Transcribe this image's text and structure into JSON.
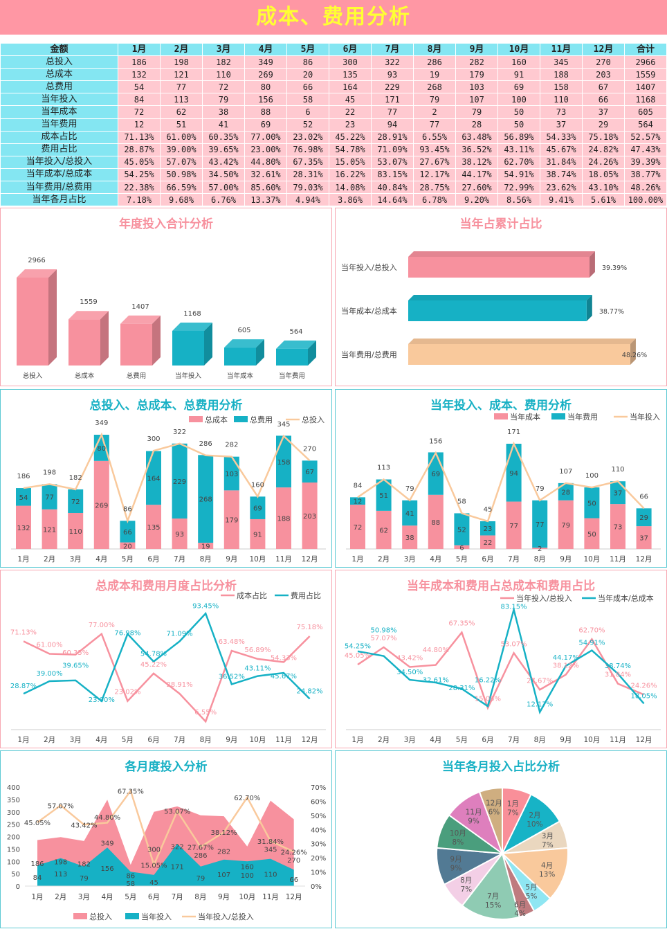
{
  "title": "成本、费用分析",
  "colors": {
    "pink": "#f7919e",
    "teal": "#16b1c5",
    "peach": "#f9c99c",
    "banner": "#ff97a4",
    "title_text": "#ffff33"
  },
  "table": {
    "headers": [
      "金额",
      "1月",
      "2月",
      "3月",
      "4月",
      "5月",
      "6月",
      "7月",
      "8月",
      "9月",
      "10月",
      "11月",
      "12月",
      "合计"
    ],
    "rows": [
      [
        "总投入",
        "186",
        "198",
        "182",
        "349",
        "86",
        "300",
        "322",
        "286",
        "282",
        "160",
        "345",
        "270",
        "2966"
      ],
      [
        "总成本",
        "132",
        "121",
        "110",
        "269",
        "20",
        "135",
        "93",
        "19",
        "179",
        "91",
        "188",
        "203",
        "1559"
      ],
      [
        "总费用",
        "54",
        "77",
        "72",
        "80",
        "66",
        "164",
        "229",
        "268",
        "103",
        "69",
        "158",
        "67",
        "1407"
      ],
      [
        "当年投入",
        "84",
        "113",
        "79",
        "156",
        "58",
        "45",
        "171",
        "79",
        "107",
        "100",
        "110",
        "66",
        "1168"
      ],
      [
        "当年成本",
        "72",
        "62",
        "38",
        "88",
        "6",
        "22",
        "77",
        "2",
        "79",
        "50",
        "73",
        "37",
        "605"
      ],
      [
        "当年费用",
        "12",
        "51",
        "41",
        "69",
        "52",
        "23",
        "94",
        "77",
        "28",
        "50",
        "37",
        "29",
        "564"
      ],
      [
        "成本占比",
        "71.13%",
        "61.00%",
        "60.35%",
        "77.00%",
        "23.02%",
        "45.22%",
        "28.91%",
        "6.55%",
        "63.48%",
        "56.89%",
        "54.33%",
        "75.18%",
        "52.57%"
      ],
      [
        "费用占比",
        "28.87%",
        "39.00%",
        "39.65%",
        "23.00%",
        "76.98%",
        "54.78%",
        "71.09%",
        "93.45%",
        "36.52%",
        "43.11%",
        "45.67%",
        "24.82%",
        "47.43%"
      ],
      [
        "当年投入/总投入",
        "45.05%",
        "57.07%",
        "43.42%",
        "44.80%",
        "67.35%",
        "15.05%",
        "53.07%",
        "27.67%",
        "38.12%",
        "62.70%",
        "31.84%",
        "24.26%",
        "39.39%"
      ],
      [
        "当年成本/总成本",
        "54.25%",
        "50.98%",
        "34.50%",
        "32.61%",
        "28.31%",
        "16.22%",
        "83.15%",
        "12.17%",
        "44.17%",
        "54.91%",
        "38.74%",
        "18.05%",
        "38.77%"
      ],
      [
        "当年费用/总费用",
        "22.38%",
        "66.59%",
        "57.00%",
        "85.60%",
        "79.03%",
        "14.08%",
        "40.84%",
        "28.75%",
        "27.60%",
        "72.99%",
        "23.62%",
        "43.10%",
        "48.26%"
      ],
      [
        "当年各月占比",
        "7.18%",
        "9.68%",
        "6.76%",
        "13.37%",
        "4.94%",
        "3.86%",
        "14.64%",
        "6.78%",
        "9.20%",
        "8.56%",
        "9.41%",
        "5.61%",
        "100.00%"
      ]
    ]
  },
  "chart_data": [
    {
      "type": "bar",
      "title": "年度投入合计分析",
      "categories": [
        "总投入",
        "总成本",
        "总费用",
        "当年投入",
        "当年成本",
        "当年费用"
      ],
      "values": [
        2966,
        1559,
        1407,
        1168,
        605,
        564
      ]
    },
    {
      "type": "bar",
      "orientation": "horizontal",
      "title": "当年占累计占比",
      "categories": [
        "当年投入/总投入",
        "当年成本/总成本",
        "当年费用/总费用"
      ],
      "values": [
        39.39,
        38.77,
        48.26
      ],
      "labels": [
        "39.39%",
        "38.77%",
        "48.26%"
      ]
    },
    {
      "type": "bar",
      "stacked": true,
      "title": "总投入、总成本、总费用分析",
      "categories": [
        "1月",
        "2月",
        "3月",
        "4月",
        "5月",
        "6月",
        "7月",
        "8月",
        "9月",
        "10月",
        "11月",
        "12月"
      ],
      "series": [
        {
          "name": "总成本",
          "values": [
            132,
            121,
            110,
            269,
            20,
            135,
            93,
            19,
            179,
            91,
            188,
            203
          ]
        },
        {
          "name": "总费用",
          "values": [
            54,
            77,
            72,
            80,
            66,
            164,
            229,
            268,
            103,
            69,
            158,
            67
          ]
        },
        {
          "name": "总投入",
          "type": "line",
          "values": [
            186,
            198,
            182,
            349,
            86,
            300,
            322,
            286,
            282,
            160,
            345,
            270
          ]
        }
      ],
      "legend": "top-right"
    },
    {
      "type": "bar",
      "stacked": true,
      "title": "当年投入、成本、费用分析",
      "categories": [
        "1月",
        "2月",
        "3月",
        "4月",
        "5月",
        "6月",
        "7月",
        "8月",
        "9月",
        "10月",
        "11月",
        "12月"
      ],
      "series": [
        {
          "name": "当年成本",
          "values": [
            72,
            62,
            38,
            88,
            6,
            22,
            77,
            2,
            79,
            50,
            73,
            37
          ]
        },
        {
          "name": "当年费用",
          "values": [
            12,
            51,
            41,
            69,
            52,
            23,
            94,
            77,
            28,
            50,
            37,
            29
          ]
        },
        {
          "name": "当年投入",
          "type": "line",
          "values": [
            84,
            113,
            79,
            156,
            58,
            45,
            171,
            79,
            107,
            100,
            110,
            66
          ]
        }
      ],
      "legend": "top-right"
    },
    {
      "type": "line",
      "title": "总成本和费用月度占比分析",
      "categories": [
        "1月",
        "2月",
        "3月",
        "4月",
        "5月",
        "6月",
        "7月",
        "8月",
        "9月",
        "10月",
        "11月",
        "12月"
      ],
      "series": [
        {
          "name": "成本占比",
          "values": [
            71.13,
            61.0,
            60.35,
            77.0,
            23.02,
            45.22,
            28.91,
            6.55,
            63.48,
            56.89,
            54.33,
            75.18
          ]
        },
        {
          "name": "费用占比",
          "values": [
            28.87,
            39.0,
            39.65,
            23.0,
            76.98,
            54.78,
            71.09,
            93.45,
            36.52,
            43.11,
            45.67,
            24.82
          ]
        }
      ],
      "legend": "top-right"
    },
    {
      "type": "line",
      "title": "当年成本和费用占总成本和费用占比",
      "categories": [
        "1月",
        "2月",
        "3月",
        "4月",
        "5月",
        "6月",
        "7月",
        "8月",
        "9月",
        "10月",
        "11月",
        "12月"
      ],
      "series": [
        {
          "name": "当年投入/总投入",
          "values": [
            45.05,
            57.07,
            43.42,
            44.8,
            67.35,
            15.05,
            53.07,
            27.67,
            38.12,
            62.7,
            31.84,
            24.26
          ]
        },
        {
          "name": "当年成本/总成本",
          "values": [
            54.25,
            50.98,
            34.5,
            32.61,
            28.31,
            16.22,
            83.15,
            12.17,
            44.17,
            54.91,
            38.74,
            18.05
          ]
        }
      ],
      "legend": "top-right"
    },
    {
      "type": "area",
      "title": "各月度投入分析",
      "categories": [
        "1月",
        "2月",
        "3月",
        "4月",
        "5月",
        "6月",
        "7月",
        "8月",
        "9月",
        "10月",
        "11月",
        "12月"
      ],
      "y_left": {
        "range": [
          0,
          400
        ],
        "ticks": [
          "0",
          "50",
          "100",
          "150",
          "200",
          "250",
          "300",
          "350",
          "400"
        ]
      },
      "y_right": {
        "range": [
          0,
          70
        ],
        "ticks": [
          "0%",
          "10%",
          "20%",
          "30%",
          "40%",
          "50%",
          "60%",
          "70%"
        ]
      },
      "series": [
        {
          "name": "总投入",
          "values": [
            186,
            198,
            182,
            349,
            86,
            300,
            322,
            286,
            282,
            160,
            345,
            270
          ]
        },
        {
          "name": "当年投入",
          "values": [
            84,
            113,
            79,
            156,
            58,
            45,
            171,
            79,
            107,
            100,
            110,
            66
          ]
        },
        {
          "name": "当年投入/总投入",
          "type": "line",
          "axis": "right",
          "values": [
            45.05,
            57.07,
            43.42,
            44.8,
            67.35,
            15.05,
            53.07,
            27.67,
            38.12,
            62.7,
            31.84,
            24.26
          ]
        }
      ],
      "legend": "bottom"
    },
    {
      "type": "pie",
      "title": "当年各月投入占比分析",
      "categories": [
        "1月",
        "2月",
        "3月",
        "4月",
        "5月",
        "6月",
        "7月",
        "8月",
        "9月",
        "10月",
        "11月",
        "12月"
      ],
      "values": [
        84,
        113,
        79,
        156,
        58,
        45,
        171,
        79,
        107,
        100,
        110,
        66
      ],
      "labels": [
        "7%",
        "10%",
        "7%",
        "13%",
        "5%",
        "4%",
        "15%",
        "7%",
        "9%",
        "8%",
        "9%",
        "6%"
      ],
      "colors": [
        "#f98f99",
        "#17b3c6",
        "#ead7bf",
        "#f9c99c",
        "#8fe6f2",
        "#bf7b7f",
        "#8fcbb3",
        "#f3cfe6",
        "#527a94",
        "#4a9e7d",
        "#de7fbd",
        "#cfae80"
      ]
    }
  ]
}
